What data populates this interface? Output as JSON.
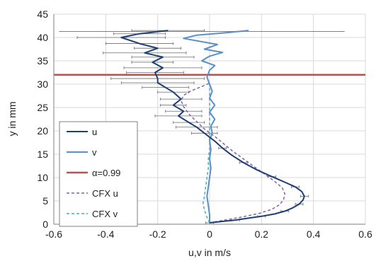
{
  "chart_data": {
    "type": "line",
    "xlabel": "u,v in m/s",
    "ylabel": "y in mm",
    "xlim": [
      -0.6,
      0.6
    ],
    "ylim": [
      0,
      45
    ],
    "xticks": [
      "-0.6",
      "-0.4",
      "-0.2",
      "0",
      "0.2",
      "0.4",
      "0.6"
    ],
    "yticks": [
      "0",
      "5",
      "10",
      "15",
      "20",
      "25",
      "30",
      "35",
      "40",
      "45"
    ],
    "grid": true,
    "legend_position": "bottom-left",
    "threshold": {
      "name": "α=0.99",
      "y": 32,
      "color": "#c0504d"
    },
    "series": [
      {
        "name": "u",
        "color": "#1f3f73",
        "style": "solid",
        "points": [
          [
            0.0,
            0.3
          ],
          [
            0.05,
            0.6
          ],
          [
            0.1,
            0.9
          ],
          [
            0.15,
            1.3
          ],
          [
            0.2,
            1.7
          ],
          [
            0.25,
            2.2
          ],
          [
            0.29,
            2.8
          ],
          [
            0.32,
            3.5
          ],
          [
            0.345,
            4.3
          ],
          [
            0.36,
            5.2
          ],
          [
            0.365,
            6.0
          ],
          [
            0.355,
            7.0
          ],
          [
            0.33,
            8.0
          ],
          [
            0.29,
            9.0
          ],
          [
            0.24,
            10.2
          ],
          [
            0.18,
            11.7
          ],
          [
            0.13,
            13.2
          ],
          [
            0.085,
            14.8
          ],
          [
            0.05,
            16.3
          ],
          [
            0.02,
            17.8
          ],
          [
            -0.02,
            19.5
          ],
          [
            -0.05,
            20.8
          ],
          [
            -0.08,
            21.8
          ],
          [
            -0.12,
            23.2
          ],
          [
            -0.1,
            24.2
          ],
          [
            -0.14,
            25.5
          ],
          [
            -0.11,
            26.8
          ],
          [
            -0.14,
            28.3
          ],
          [
            -0.17,
            29.3
          ],
          [
            -0.2,
            30.3
          ],
          [
            -0.2,
            31.2
          ],
          [
            -0.21,
            32.5
          ],
          [
            -0.18,
            33.5
          ],
          [
            -0.22,
            34.7
          ],
          [
            -0.18,
            35.8
          ],
          [
            -0.25,
            36.7
          ],
          [
            -0.2,
            37.7
          ],
          [
            -0.27,
            38.7
          ],
          [
            -0.34,
            40.0
          ],
          [
            -0.27,
            40.8
          ],
          [
            -0.16,
            41.5
          ]
        ]
      },
      {
        "name": "v",
        "color": "#5b8fc7",
        "style": "solid",
        "points": [
          [
            0.0,
            0.3
          ],
          [
            0.0,
            2.0
          ],
          [
            -0.005,
            4.0
          ],
          [
            -0.01,
            6.0
          ],
          [
            -0.005,
            8.0
          ],
          [
            0.0,
            10.0
          ],
          [
            0.005,
            12.0
          ],
          [
            0.0,
            14.0
          ],
          [
            0.005,
            16.0
          ],
          [
            0.0,
            18.0
          ],
          [
            0.01,
            19.5
          ],
          [
            0.005,
            21.0
          ],
          [
            0.02,
            22.5
          ],
          [
            0.0,
            24.0
          ],
          [
            0.02,
            25.5
          ],
          [
            0.0,
            27.0
          ],
          [
            0.01,
            28.5
          ],
          [
            0.0,
            30.0
          ],
          [
            -0.01,
            31.5
          ],
          [
            0.0,
            33.0
          ],
          [
            0.02,
            34.0
          ],
          [
            -0.03,
            35.0
          ],
          [
            0.0,
            36.0
          ],
          [
            0.05,
            36.8
          ],
          [
            -0.02,
            37.5
          ],
          [
            0.03,
            38.5
          ],
          [
            -0.1,
            39.8
          ],
          [
            -0.05,
            40.5
          ],
          [
            0.06,
            41.0
          ],
          [
            0.15,
            41.5
          ]
        ]
      },
      {
        "name": "CFX u",
        "color": "#8064a2",
        "style": "dashed",
        "points": [
          [
            0.0,
            0.3
          ],
          [
            0.05,
            0.8
          ],
          [
            0.12,
            1.5
          ],
          [
            0.19,
            2.3
          ],
          [
            0.24,
            3.2
          ],
          [
            0.27,
            4.2
          ],
          [
            0.285,
            5.3
          ],
          [
            0.29,
            6.5
          ],
          [
            0.28,
            7.8
          ],
          [
            0.25,
            9.2
          ],
          [
            0.21,
            10.8
          ],
          [
            0.17,
            12.4
          ],
          [
            0.13,
            14.0
          ],
          [
            0.09,
            15.6
          ],
          [
            0.055,
            17.2
          ],
          [
            0.02,
            18.8
          ],
          [
            -0.02,
            20.4
          ],
          [
            -0.05,
            22.0
          ],
          [
            -0.08,
            23.6
          ],
          [
            -0.1,
            25.2
          ],
          [
            -0.11,
            26.5
          ],
          [
            -0.1,
            27.6
          ],
          [
            -0.07,
            28.6
          ],
          [
            -0.03,
            29.5
          ],
          [
            0.0,
            30.2
          ]
        ]
      },
      {
        "name": "CFX v",
        "color": "#4bacc6",
        "style": "dashed",
        "points": [
          [
            0.0,
            0.3
          ],
          [
            -0.01,
            1.5
          ],
          [
            -0.02,
            3.0
          ],
          [
            -0.025,
            4.5
          ],
          [
            -0.02,
            6.0
          ],
          [
            -0.015,
            8.0
          ],
          [
            -0.01,
            10.0
          ],
          [
            -0.005,
            12.0
          ],
          [
            -0.005,
            14.0
          ],
          [
            0.0,
            16.0
          ],
          [
            0.0,
            18.0
          ],
          [
            0.0,
            20.0
          ],
          [
            0.0,
            22.0
          ],
          [
            0.0,
            24.0
          ],
          [
            0.0,
            26.0
          ],
          [
            0.0,
            28.0
          ],
          [
            0.0,
            30.0
          ]
        ]
      }
    ]
  }
}
